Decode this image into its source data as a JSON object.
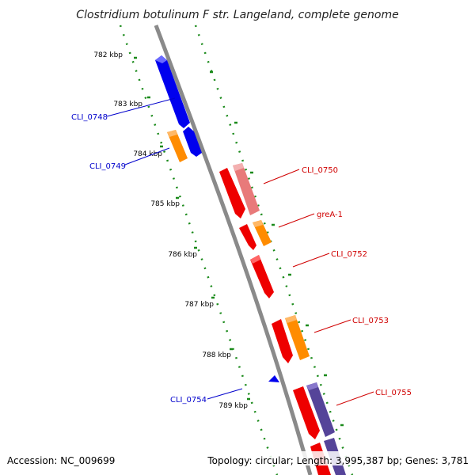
{
  "title": "Clostridium botulinum F str. Langeland, complete genome",
  "footer": {
    "accession": "Accession: NC_009699",
    "topology": "Topology: circular; Length: 3,995,387 bp; Genes: 3,781"
  },
  "ticks": [
    {
      "label": "782 kbp"
    },
    {
      "label": "783 kbp"
    },
    {
      "label": "784 kbp"
    },
    {
      "label": "785 kbp"
    },
    {
      "label": "786 kbp"
    },
    {
      "label": "787 kbp"
    },
    {
      "label": "788 kbp"
    },
    {
      "label": "789 kbp"
    }
  ],
  "genes": {
    "left": [
      {
        "label": "CLI_0748",
        "color": "#0000cc"
      },
      {
        "label": "CLI_0749",
        "color": "#0000cc"
      },
      {
        "label": "CLI_0754",
        "color": "#0000cc"
      }
    ],
    "right": [
      {
        "label": "CLI_0750",
        "color": "#d00000"
      },
      {
        "label": "greA-1",
        "color": "#d00000"
      },
      {
        "label": "CLI_0752",
        "color": "#d00000"
      },
      {
        "label": "CLI_0753",
        "color": "#d00000"
      },
      {
        "label": "CLI_0755",
        "color": "#d00000"
      }
    ]
  },
  "colors": {
    "backbone": "#8a8a8a",
    "tick_dots": "#1a8a1a",
    "gene_red": "#ee0000",
    "gene_pink": "#e87a7a",
    "gene_orange": "#ff8c00",
    "gene_blue": "#0000ee",
    "gene_purple": "#554499"
  }
}
